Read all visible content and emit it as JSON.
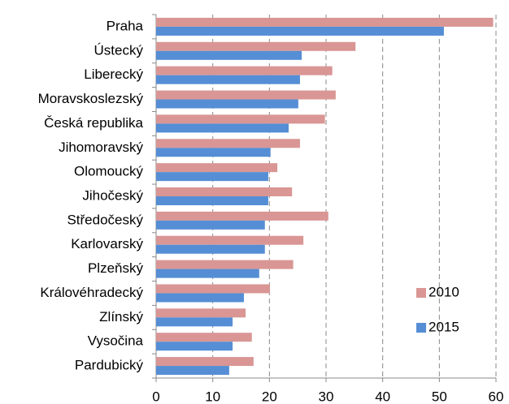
{
  "chart_data": {
    "type": "barh",
    "categories": [
      "Praha",
      "Ústecký",
      "Liberecký",
      "Moravskoslezský",
      "Česká republika",
      "Jihomoravský",
      "Olomoucký",
      "Jihočeský",
      "Středočeský",
      "Karlovarský",
      "Plzeňský",
      "Královéhradecký",
      "Zlínský",
      "Vysočina",
      "Pardubický"
    ],
    "series": [
      {
        "name": "2010",
        "color": "#d99694",
        "values": [
          59.5,
          35.2,
          31.1,
          31.7,
          29.8,
          25.4,
          21.4,
          24.0,
          30.4,
          26.0,
          24.2,
          20.1,
          15.8,
          16.9,
          17.2
        ]
      },
      {
        "name": "2015",
        "color": "#558ed5",
        "values": [
          50.8,
          25.7,
          25.4,
          25.1,
          23.4,
          20.2,
          19.8,
          19.8,
          19.2,
          19.2,
          18.2,
          15.5,
          13.5,
          13.5,
          12.9
        ]
      }
    ],
    "xlim": [
      0,
      60
    ],
    "xticks": [
      0,
      10,
      20,
      30,
      40,
      50,
      60
    ],
    "grid": true,
    "legend": "lower right"
  }
}
